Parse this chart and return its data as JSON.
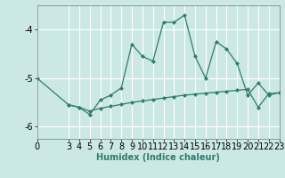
{
  "xlabel": "Humidex (Indice chaleur)",
  "background_color": "#cce8e4",
  "grid_color": "#ffffff",
  "line_color": "#2d7d6e",
  "x_line1": [
    0,
    3,
    4,
    5,
    6,
    7,
    8,
    9,
    10,
    11,
    12,
    13,
    14,
    15,
    16,
    17,
    18,
    19,
    20,
    21,
    22,
    23
  ],
  "y_line1": [
    -5.0,
    -5.55,
    -5.6,
    -5.75,
    -5.45,
    -5.35,
    -5.2,
    -4.3,
    -4.55,
    -4.65,
    -3.85,
    -3.85,
    -3.7,
    -4.55,
    -5.0,
    -4.25,
    -4.4,
    -4.7,
    -5.35,
    -5.1,
    -5.35,
    -5.3
  ],
  "x_line2": [
    3,
    4,
    5,
    6,
    7,
    8,
    9,
    10,
    11,
    12,
    13,
    14,
    15,
    16,
    17,
    18,
    19,
    20,
    21,
    22,
    23
  ],
  "y_line2": [
    -5.55,
    -5.6,
    -5.68,
    -5.62,
    -5.58,
    -5.54,
    -5.5,
    -5.47,
    -5.44,
    -5.41,
    -5.38,
    -5.35,
    -5.33,
    -5.31,
    -5.29,
    -5.27,
    -5.25,
    -5.23,
    -5.6,
    -5.32,
    -5.3
  ],
  "xlim": [
    0,
    23
  ],
  "ylim": [
    -6.25,
    -3.5
  ],
  "yticks": [
    -6,
    -5,
    -4
  ],
  "xticks": [
    0,
    3,
    4,
    5,
    6,
    7,
    8,
    9,
    10,
    11,
    12,
    13,
    14,
    15,
    16,
    17,
    18,
    19,
    20,
    21,
    22,
    23
  ],
  "marker": "D",
  "markersize": 2.0,
  "linewidth": 0.9,
  "tick_fontsize": 7,
  "xlabel_fontsize": 7
}
